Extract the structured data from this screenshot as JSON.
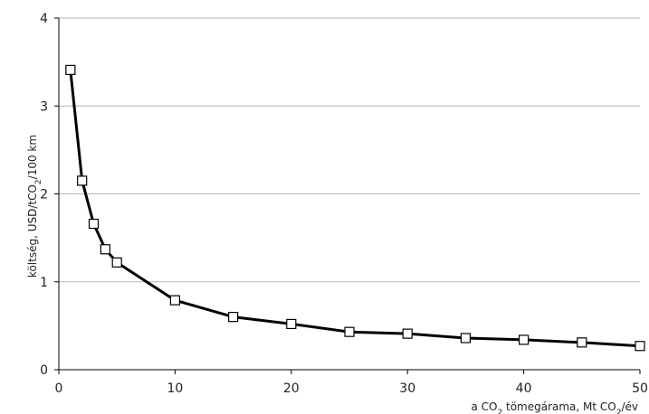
{
  "chart_data": {
    "type": "line",
    "xlabel": {
      "pre": "a CO",
      "sub1": "2",
      "mid": " tömegárama, Mt CO",
      "sub2": "2",
      "post": "/év"
    },
    "ylabel": {
      "pre": "költség, USD/tCO",
      "sub": "2",
      "post": "/100 km"
    },
    "xlim": [
      0,
      50
    ],
    "ylim": [
      0,
      4
    ],
    "x_ticks": [
      0,
      10,
      20,
      30,
      40,
      50
    ],
    "y_ticks": [
      0,
      1,
      2,
      3,
      4
    ],
    "grid": "horizontal",
    "marker": "open-square",
    "line_color": "#000000",
    "grid_color": "#b3b3b3",
    "series": [
      {
        "x": [
          1,
          2,
          3,
          4,
          5,
          10,
          15,
          20,
          25,
          30,
          35,
          40,
          45,
          50
        ],
        "y": [
          3.41,
          2.15,
          1.66,
          1.37,
          1.22,
          0.79,
          0.6,
          0.52,
          0.43,
          0.41,
          0.36,
          0.34,
          0.31,
          0.27
        ]
      }
    ]
  }
}
